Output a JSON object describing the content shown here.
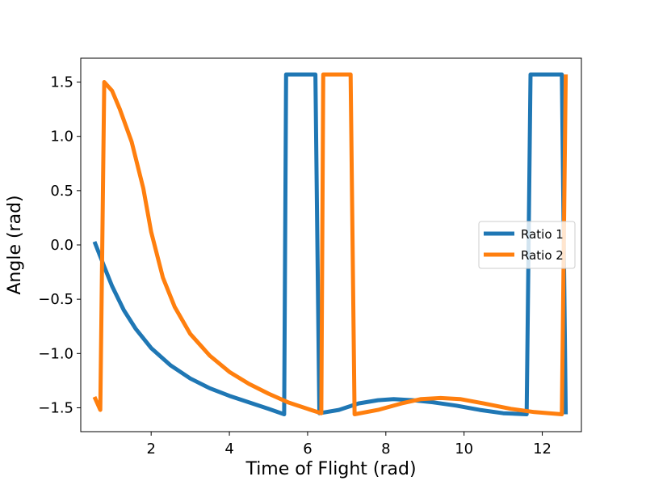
{
  "chart_data": {
    "type": "line",
    "title": "",
    "xlabel": "Time of Flight (rad)",
    "ylabel": "Angle (rad)",
    "xlim": [
      0.2,
      13.0
    ],
    "ylim": [
      -1.72,
      1.72
    ],
    "xticks": [
      2,
      4,
      6,
      8,
      10,
      12
    ],
    "yticks": [
      -1.5,
      -1.0,
      -0.5,
      0.0,
      0.5,
      1.0,
      1.5
    ],
    "xtick_labels": [
      "2",
      "4",
      "6",
      "8",
      "10",
      "12"
    ],
    "ytick_labels": [
      "−1.5",
      "−1.0",
      "−0.5",
      "0.0",
      "0.5",
      "1.0",
      "1.5"
    ],
    "grid": false,
    "legend_position": "center-right",
    "series": [
      {
        "name": "Ratio 1",
        "color": "#1f77b4",
        "points": [
          [
            0.55,
            0.03
          ],
          [
            0.8,
            -0.2
          ],
          [
            1.0,
            -0.38
          ],
          [
            1.3,
            -0.6
          ],
          [
            1.6,
            -0.77
          ],
          [
            2.0,
            -0.95
          ],
          [
            2.5,
            -1.11
          ],
          [
            3.0,
            -1.23
          ],
          [
            3.5,
            -1.32
          ],
          [
            4.0,
            -1.39
          ],
          [
            4.5,
            -1.45
          ],
          [
            5.0,
            -1.51
          ],
          [
            5.4,
            -1.56
          ],
          [
            5.45,
            1.57
          ],
          [
            6.2,
            1.57
          ],
          [
            6.3,
            -1.55
          ],
          [
            6.8,
            -1.52
          ],
          [
            7.3,
            -1.46
          ],
          [
            7.8,
            -1.43
          ],
          [
            8.2,
            -1.42
          ],
          [
            8.7,
            -1.43
          ],
          [
            9.2,
            -1.45
          ],
          [
            9.8,
            -1.48
          ],
          [
            10.4,
            -1.52
          ],
          [
            11.0,
            -1.55
          ],
          [
            11.6,
            -1.56
          ],
          [
            11.7,
            1.57
          ],
          [
            12.5,
            1.57
          ],
          [
            12.6,
            -1.56
          ]
        ]
      },
      {
        "name": "Ratio 2",
        "color": "#ff7f0e",
        "points": [
          [
            0.55,
            -1.4
          ],
          [
            0.7,
            -1.52
          ],
          [
            0.8,
            1.5
          ],
          [
            1.0,
            1.42
          ],
          [
            1.2,
            1.25
          ],
          [
            1.5,
            0.95
          ],
          [
            1.8,
            0.52
          ],
          [
            2.0,
            0.12
          ],
          [
            2.3,
            -0.3
          ],
          [
            2.6,
            -0.57
          ],
          [
            3.0,
            -0.82
          ],
          [
            3.5,
            -1.02
          ],
          [
            4.0,
            -1.17
          ],
          [
            4.5,
            -1.28
          ],
          [
            5.0,
            -1.37
          ],
          [
            5.5,
            -1.45
          ],
          [
            6.0,
            -1.51
          ],
          [
            6.35,
            -1.55
          ],
          [
            6.4,
            1.57
          ],
          [
            7.1,
            1.57
          ],
          [
            7.2,
            -1.56
          ],
          [
            7.8,
            -1.52
          ],
          [
            8.4,
            -1.46
          ],
          [
            8.9,
            -1.42
          ],
          [
            9.4,
            -1.41
          ],
          [
            9.9,
            -1.42
          ],
          [
            10.5,
            -1.46
          ],
          [
            11.2,
            -1.51
          ],
          [
            11.8,
            -1.54
          ],
          [
            12.5,
            -1.56
          ],
          [
            12.6,
            1.57
          ]
        ]
      }
    ]
  }
}
